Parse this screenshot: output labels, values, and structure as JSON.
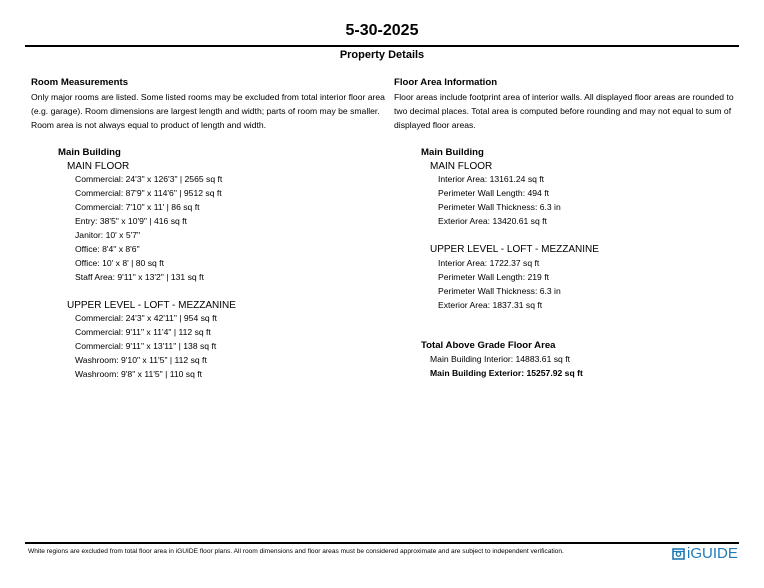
{
  "header": {
    "date": "5-30-2025",
    "subtitle": "Property Details"
  },
  "rooms": {
    "title": "Room Measurements",
    "description": "Only major rooms are listed. Some listed rooms may be excluded from total interior floor area (e.g. garage). Room dimensions are largest length and width; parts of room may be smaller. Room area is not always equal to product of length and width.",
    "building": "Main Building",
    "levels": [
      {
        "name": "MAIN FLOOR",
        "items": [
          "Commercial: 24'3\" x 126'3\" | 2565 sq ft",
          "Commercial: 87'9\" x 114'6\" | 9512 sq ft",
          "Commercial: 7'10\" x 11' | 86 sq ft",
          "Entry: 38'5\" x 10'9\" | 416 sq ft",
          "Janitor: 10' x 5'7\"",
          "Office: 8'4\" x 8'6\"",
          "Office: 10' x 8' | 80 sq ft",
          "Staff Area: 9'11\" x 13'2\" | 131 sq ft"
        ]
      },
      {
        "name": "UPPER LEVEL - LOFT - MEZZANINE",
        "items": [
          "Commercial: 24'3\" x 42'11\" | 954 sq ft",
          "Commercial: 9'11\" x 11'4\" | 112 sq ft",
          "Commercial: 9'11\" x 13'11\" | 138 sq ft",
          "Washroom: 9'10\" x 11'5\" | 112 sq ft",
          "Washroom: 9'8\" x 11'5\" | 110 sq ft"
        ]
      }
    ]
  },
  "floor_area": {
    "title": "Floor Area Information",
    "description": "Floor areas include footprint area of interior walls. All displayed floor areas are rounded to two decimal places. Total area is computed before rounding and may not equal to sum of displayed floor areas.",
    "building": "Main Building",
    "levels": [
      {
        "name": "MAIN FLOOR",
        "items": [
          "Interior Area: 13161.24 sq ft",
          "Perimeter Wall Length: 494 ft",
          "Perimeter Wall Thickness: 6.3 in",
          "Exterior Area: 13420.61 sq ft"
        ]
      },
      {
        "name": "UPPER LEVEL - LOFT - MEZZANINE",
        "items": [
          "Interior Area: 1722.37 sq ft",
          "Perimeter Wall Length: 219 ft",
          "Perimeter Wall Thickness: 6.3 in",
          "Exterior Area: 1837.31 sq ft"
        ]
      }
    ],
    "total_title": "Total Above Grade Floor Area",
    "total_interior": "Main Building Interior: 14883.61 sq ft",
    "total_exterior": "Main Building Exterior: 15257.92 sq ft"
  },
  "footer": {
    "disclaimer": "White regions are excluded from total floor area in iGUIDE floor plans. All room dimensions and floor areas must be considered approximate and are subject to independent verification.",
    "logo_text": "iGUIDE",
    "logo_color": "#1f7ab8"
  }
}
